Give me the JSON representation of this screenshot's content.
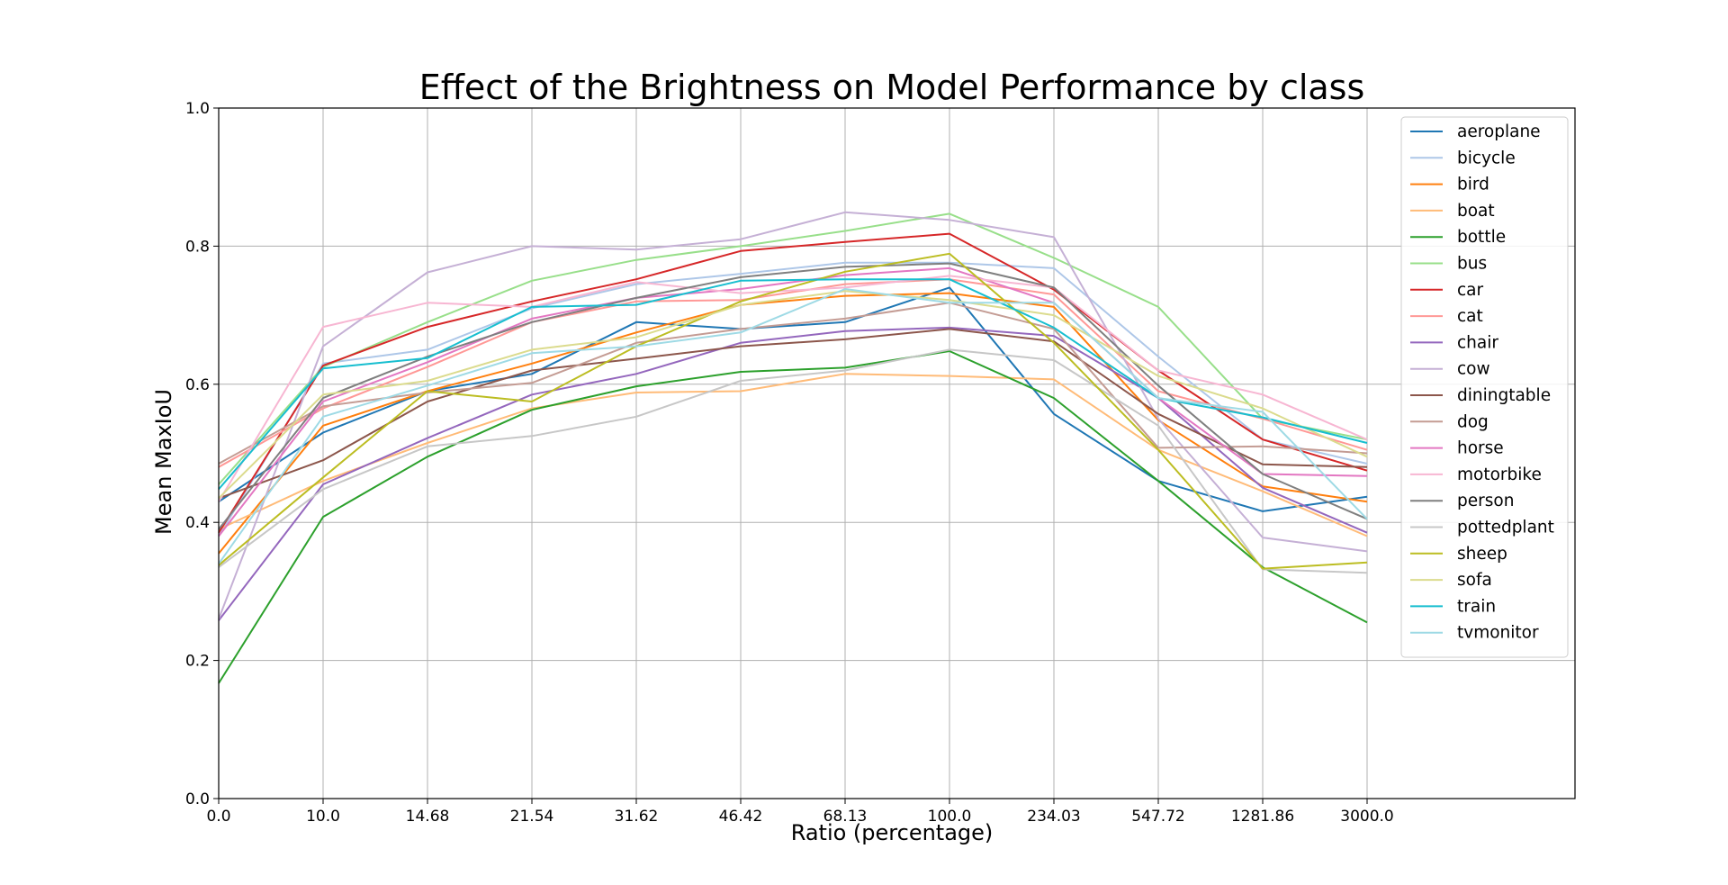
{
  "chart_data": {
    "type": "line",
    "title": "Effect of the Brightness on Model Performance by class",
    "xlabel": "Ratio (percentage)",
    "ylabel": "Mean MaxIoU",
    "x": [
      "0.0",
      "10.0",
      "14.68",
      "21.54",
      "31.62",
      "46.42",
      "68.13",
      "100.0",
      "234.03",
      "547.72",
      "1281.86",
      "3000.0"
    ],
    "x_range_index": [
      0,
      13
    ],
    "ylim": [
      0.0,
      1.0
    ],
    "yticks": [
      "0.0",
      "0.2",
      "0.4",
      "0.6",
      "0.8",
      "1.0"
    ],
    "grid": true,
    "legend_position": "top-right",
    "series": [
      {
        "name": "aeroplane",
        "color": "#1f77b4",
        "values": [
          0.43,
          0.53,
          0.59,
          0.615,
          0.69,
          0.68,
          0.69,
          0.74,
          0.557,
          0.46,
          0.416,
          0.437
        ]
      },
      {
        "name": "bicycle",
        "color": "#aec7e8",
        "values": [
          0.38,
          0.63,
          0.65,
          0.71,
          0.745,
          0.76,
          0.776,
          0.776,
          0.768,
          0.64,
          0.52,
          0.485
        ]
      },
      {
        "name": "bird",
        "color": "#ff7f0e",
        "values": [
          0.355,
          0.54,
          0.59,
          0.63,
          0.675,
          0.715,
          0.728,
          0.732,
          0.712,
          0.548,
          0.452,
          0.43
        ]
      },
      {
        "name": "boat",
        "color": "#ffbb78",
        "values": [
          0.39,
          0.46,
          0.515,
          0.565,
          0.588,
          0.59,
          0.615,
          0.612,
          0.607,
          0.505,
          0.445,
          0.38
        ]
      },
      {
        "name": "bottle",
        "color": "#2ca02c",
        "values": [
          0.167,
          0.408,
          0.495,
          0.563,
          0.597,
          0.618,
          0.624,
          0.648,
          0.58,
          0.46,
          0.335,
          0.255
        ]
      },
      {
        "name": "bus",
        "color": "#98df8a",
        "values": [
          0.455,
          0.625,
          0.69,
          0.75,
          0.78,
          0.8,
          0.822,
          0.847,
          0.783,
          0.712,
          0.55,
          0.52
        ]
      },
      {
        "name": "car",
        "color": "#d62728",
        "values": [
          0.385,
          0.627,
          0.683,
          0.72,
          0.752,
          0.793,
          0.806,
          0.818,
          0.737,
          0.62,
          0.52,
          0.475
        ]
      },
      {
        "name": "cat",
        "color": "#ff9896",
        "values": [
          0.48,
          0.565,
          0.625,
          0.69,
          0.72,
          0.722,
          0.745,
          0.752,
          0.73,
          0.59,
          0.55,
          0.505
        ]
      },
      {
        "name": "chair",
        "color": "#9467bd",
        "values": [
          0.258,
          0.455,
          0.522,
          0.585,
          0.615,
          0.66,
          0.677,
          0.682,
          0.67,
          0.58,
          0.45,
          0.385
        ]
      },
      {
        "name": "cow",
        "color": "#c5b0d5",
        "values": [
          0.26,
          0.655,
          0.762,
          0.8,
          0.795,
          0.81,
          0.849,
          0.838,
          0.813,
          0.55,
          0.378,
          0.358
        ]
      },
      {
        "name": "diningtable",
        "color": "#8c564b",
        "values": [
          0.435,
          0.49,
          0.575,
          0.62,
          0.637,
          0.655,
          0.665,
          0.68,
          0.662,
          0.557,
          0.484,
          0.48
        ]
      },
      {
        "name": "dog",
        "color": "#c49c94",
        "values": [
          0.485,
          0.568,
          0.588,
          0.602,
          0.66,
          0.68,
          0.695,
          0.718,
          0.68,
          0.508,
          0.51,
          0.5
        ]
      },
      {
        "name": "horse",
        "color": "#e377c2",
        "values": [
          0.38,
          0.575,
          0.632,
          0.695,
          0.725,
          0.738,
          0.758,
          0.768,
          0.718,
          0.58,
          0.47,
          0.467
        ]
      },
      {
        "name": "motorbike",
        "color": "#f7b6d2",
        "values": [
          0.43,
          0.683,
          0.718,
          0.712,
          0.748,
          0.732,
          0.74,
          0.757,
          0.74,
          0.62,
          0.585,
          0.52
        ]
      },
      {
        "name": "person",
        "color": "#7f7f7f",
        "values": [
          0.39,
          0.58,
          0.64,
          0.69,
          0.725,
          0.755,
          0.77,
          0.775,
          0.74,
          0.598,
          0.47,
          0.405
        ]
      },
      {
        "name": "pottedplant",
        "color": "#c7c7c7",
        "values": [
          0.335,
          0.448,
          0.51,
          0.525,
          0.553,
          0.605,
          0.62,
          0.65,
          0.635,
          0.54,
          0.332,
          0.327
        ]
      },
      {
        "name": "sheep",
        "color": "#bcbd22",
        "values": [
          0.338,
          0.465,
          0.59,
          0.575,
          0.655,
          0.72,
          0.763,
          0.789,
          0.66,
          0.505,
          0.333,
          0.342
        ]
      },
      {
        "name": "sofa",
        "color": "#dbdb8d",
        "values": [
          0.435,
          0.585,
          0.605,
          0.65,
          0.668,
          0.715,
          0.735,
          0.722,
          0.7,
          0.612,
          0.565,
          0.495
        ]
      },
      {
        "name": "train",
        "color": "#17becf",
        "values": [
          0.448,
          0.623,
          0.638,
          0.712,
          0.715,
          0.75,
          0.752,
          0.752,
          0.682,
          0.58,
          0.552,
          0.515
        ]
      },
      {
        "name": "tvmonitor",
        "color": "#9edae5",
        "values": [
          0.34,
          0.553,
          0.598,
          0.645,
          0.655,
          0.675,
          0.738,
          0.718,
          0.718,
          0.58,
          0.56,
          0.405
        ]
      }
    ]
  }
}
